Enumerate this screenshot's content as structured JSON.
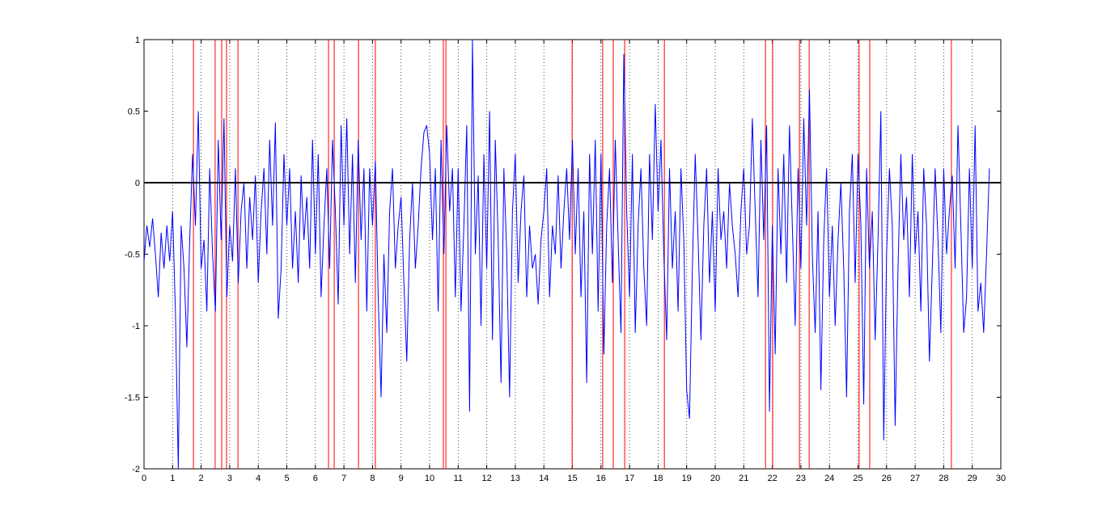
{
  "chart_data": {
    "type": "line",
    "x": [
      0,
      0.1,
      0.2,
      0.3,
      0.4,
      0.5,
      0.6,
      0.7,
      0.8,
      0.9,
      1,
      1.1,
      1.2,
      1.3,
      1.4,
      1.5,
      1.6,
      1.7,
      1.8,
      1.9,
      2,
      2.1,
      2.2,
      2.3,
      2.4,
      2.5,
      2.6,
      2.7,
      2.8,
      2.9,
      3,
      3.1,
      3.2,
      3.3,
      3.4,
      3.5,
      3.6,
      3.7,
      3.8,
      3.9,
      4,
      4.1,
      4.2,
      4.3,
      4.4,
      4.5,
      4.6,
      4.7,
      4.8,
      4.9,
      5,
      5.1,
      5.2,
      5.3,
      5.4,
      5.5,
      5.6,
      5.7,
      5.8,
      5.9,
      6,
      6.1,
      6.2,
      6.3,
      6.4,
      6.5,
      6.6,
      6.7,
      6.8,
      6.9,
      7,
      7.1,
      7.2,
      7.3,
      7.4,
      7.5,
      7.6,
      7.7,
      7.8,
      7.9,
      8,
      8.1,
      8.2,
      8.3,
      8.4,
      8.5,
      8.6,
      8.7,
      8.8,
      8.9,
      9,
      9.1,
      9.2,
      9.3,
      9.4,
      9.5,
      9.6,
      9.7,
      9.8,
      9.9,
      10,
      10.1,
      10.2,
      10.3,
      10.4,
      10.5,
      10.6,
      10.7,
      10.8,
      10.9,
      11,
      11.1,
      11.2,
      11.3,
      11.4,
      11.5,
      11.6,
      11.7,
      11.8,
      11.9,
      12,
      12.1,
      12.2,
      12.3,
      12.4,
      12.5,
      12.6,
      12.7,
      12.8,
      12.9,
      13,
      13.1,
      13.2,
      13.3,
      13.4,
      13.5,
      13.6,
      13.7,
      13.8,
      13.9,
      14,
      14.1,
      14.2,
      14.3,
      14.4,
      14.5,
      14.6,
      14.7,
      14.8,
      14.9,
      15,
      15.1,
      15.2,
      15.3,
      15.4,
      15.5,
      15.6,
      15.7,
      15.8,
      15.9,
      16,
      16.1,
      16.2,
      16.3,
      16.4,
      16.5,
      16.6,
      16.7,
      16.8,
      16.9,
      17,
      17.1,
      17.2,
      17.3,
      17.4,
      17.5,
      17.6,
      17.7,
      17.8,
      17.9,
      18,
      18.1,
      18.2,
      18.3,
      18.4,
      18.5,
      18.6,
      18.7,
      18.8,
      18.9,
      19,
      19.1,
      19.2,
      19.3,
      19.4,
      19.5,
      19.6,
      19.7,
      19.8,
      19.9,
      20,
      20.1,
      20.2,
      20.3,
      20.4,
      20.5,
      20.6,
      20.7,
      20.8,
      20.9,
      21,
      21.1,
      21.2,
      21.3,
      21.4,
      21.5,
      21.6,
      21.7,
      21.8,
      21.9,
      22,
      22.1,
      22.2,
      22.3,
      22.4,
      22.5,
      22.6,
      22.7,
      22.8,
      22.9,
      23,
      23.1,
      23.2,
      23.3,
      23.4,
      23.5,
      23.6,
      23.7,
      23.8,
      23.9,
      24,
      24.1,
      24.2,
      24.3,
      24.4,
      24.5,
      24.6,
      24.7,
      24.8,
      24.9,
      25,
      25.1,
      25.2,
      25.3,
      25.4,
      25.5,
      25.6,
      25.7,
      25.8,
      25.9,
      26,
      26.1,
      26.2,
      26.3,
      26.4,
      26.5,
      26.6,
      26.7,
      26.8,
      26.9,
      27,
      27.1,
      27.2,
      27.3,
      27.4,
      27.5,
      27.6,
      27.7,
      27.8,
      27.9,
      28,
      28.1,
      28.2,
      28.3,
      28.4,
      28.5,
      28.6,
      28.7,
      28.8,
      28.9,
      29,
      29.1,
      29.2,
      29.3,
      29.4,
      29.5,
      29.6
    ],
    "values": [
      -0.55,
      -0.3,
      -0.45,
      -0.25,
      -0.5,
      -0.8,
      -0.35,
      -0.6,
      -0.3,
      -0.55,
      -0.2,
      -0.9,
      -2.0,
      -0.3,
      -0.6,
      -1.15,
      -0.4,
      0.2,
      -0.3,
      0.5,
      -0.6,
      -0.4,
      -0.9,
      0.1,
      -0.5,
      -0.9,
      0.3,
      -0.4,
      0.45,
      -0.8,
      -0.3,
      -0.55,
      0.1,
      -0.7,
      -0.2,
      0.0,
      -0.6,
      -0.1,
      -0.4,
      0.05,
      -0.7,
      -0.2,
      0.1,
      -0.5,
      0.3,
      -0.3,
      0.42,
      -0.95,
      -0.6,
      0.2,
      -0.3,
      0.1,
      -0.6,
      -0.2,
      -0.7,
      0.05,
      -0.4,
      -0.1,
      -0.6,
      0.3,
      -0.5,
      0.2,
      -0.8,
      -0.3,
      0.1,
      -0.6,
      0.3,
      -0.2,
      -0.85,
      0.4,
      -0.3,
      0.45,
      -0.5,
      0.2,
      -0.7,
      0.3,
      -0.4,
      0.1,
      -0.9,
      0.1,
      -0.3,
      0.15,
      -0.8,
      -1.5,
      -0.5,
      -1.05,
      -0.2,
      0.1,
      -0.6,
      -0.3,
      -0.1,
      -0.7,
      -1.25,
      -0.4,
      0.0,
      -0.6,
      -0.3,
      0.1,
      0.35,
      0.4,
      0.2,
      -0.4,
      0.1,
      -0.9,
      0.3,
      -0.5,
      0.4,
      -0.2,
      0.1,
      -0.8,
      0.1,
      -0.9,
      -0.3,
      0.4,
      -1.6,
      1.0,
      -0.5,
      0.05,
      -1.0,
      0.2,
      -0.6,
      0.5,
      -1.1,
      0.3,
      -0.4,
      -1.4,
      0.1,
      -0.5,
      -1.5,
      -0.2,
      0.2,
      -0.7,
      -0.2,
      0.05,
      -0.8,
      -0.3,
      -0.6,
      -0.5,
      -0.85,
      -0.4,
      -0.2,
      0.1,
      -0.8,
      -0.3,
      -0.5,
      0.05,
      -0.6,
      -0.2,
      0.1,
      -0.4,
      0.3,
      -0.5,
      0.1,
      -0.8,
      -0.2,
      -1.4,
      0.2,
      -0.5,
      0.3,
      -0.9,
      0.2,
      -1.2,
      -0.3,
      0.1,
      -0.7,
      0.3,
      -0.4,
      -1.05,
      0.9,
      -0.2,
      -0.8,
      0.2,
      -1.05,
      -0.3,
      0.1,
      -0.6,
      -1.0,
      0.2,
      -0.4,
      0.55,
      -0.2,
      0.3,
      -0.5,
      -1.1,
      0.1,
      -0.6,
      -0.2,
      -0.9,
      0.1,
      -0.4,
      -1.45,
      -1.65,
      -0.6,
      0.2,
      -0.4,
      -1.1,
      -0.3,
      0.1,
      -0.7,
      -0.2,
      -0.9,
      0.1,
      -0.4,
      -0.2,
      -0.6,
      0.0,
      -0.3,
      -0.5,
      -0.8,
      -0.2,
      0.1,
      -0.5,
      -0.3,
      0.45,
      -0.2,
      -0.8,
      0.3,
      -0.4,
      0.4,
      -1.6,
      -0.3,
      -1.2,
      0.1,
      -0.5,
      0.2,
      -0.7,
      0.4,
      -0.3,
      -1.0,
      0.1,
      -0.6,
      0.45,
      -0.3,
      0.65,
      -0.5,
      -1.05,
      -0.2,
      -1.45,
      -0.4,
      0.1,
      -0.8,
      -0.3,
      -1.0,
      -0.4,
      0.0,
      -0.6,
      -1.5,
      -0.2,
      0.2,
      -0.7,
      0.2,
      -0.3,
      -1.55,
      0.1,
      -0.6,
      -0.2,
      -1.1,
      -0.4,
      0.5,
      -1.8,
      -0.5,
      0.1,
      -0.3,
      -1.7,
      -0.6,
      0.2,
      -0.4,
      -0.1,
      -0.8,
      0.2,
      -0.5,
      -0.2,
      -0.9,
      0.1,
      -0.3,
      -1.25,
      -0.6,
      0.1,
      -0.4,
      -1.05,
      0.1,
      -0.5,
      -0.2,
      0.05,
      -0.6,
      0.4,
      -0.3,
      -1.05,
      -0.8,
      0.1,
      -0.6,
      0.4,
      -0.9,
      -0.7,
      -1.05,
      -0.5,
      0.1
    ],
    "color": "#0000ff",
    "vlines": {
      "color": "#ff0000",
      "values": [
        1.73,
        2.49,
        2.72,
        2.89,
        3.29,
        6.46,
        6.66,
        7.51,
        8.1,
        10.48,
        10.57,
        14.99,
        16.06,
        16.43,
        16.83,
        18.22,
        21.76,
        22.01,
        22.95,
        23.29,
        25.04,
        25.41,
        28.27
      ]
    },
    "hline": 0,
    "xlim": [
      0,
      30
    ],
    "xticks": [
      0,
      1,
      2,
      3,
      4,
      5,
      6,
      7,
      8,
      9,
      10,
      11,
      12,
      13,
      14,
      15,
      16,
      17,
      18,
      19,
      20,
      21,
      22,
      23,
      24,
      25,
      26,
      27,
      28,
      29,
      30
    ],
    "ylim": [
      -2,
      1
    ],
    "yticks": [
      -2,
      -1.5,
      -1,
      -0.5,
      0,
      0.5,
      1
    ],
    "grid": "x"
  }
}
